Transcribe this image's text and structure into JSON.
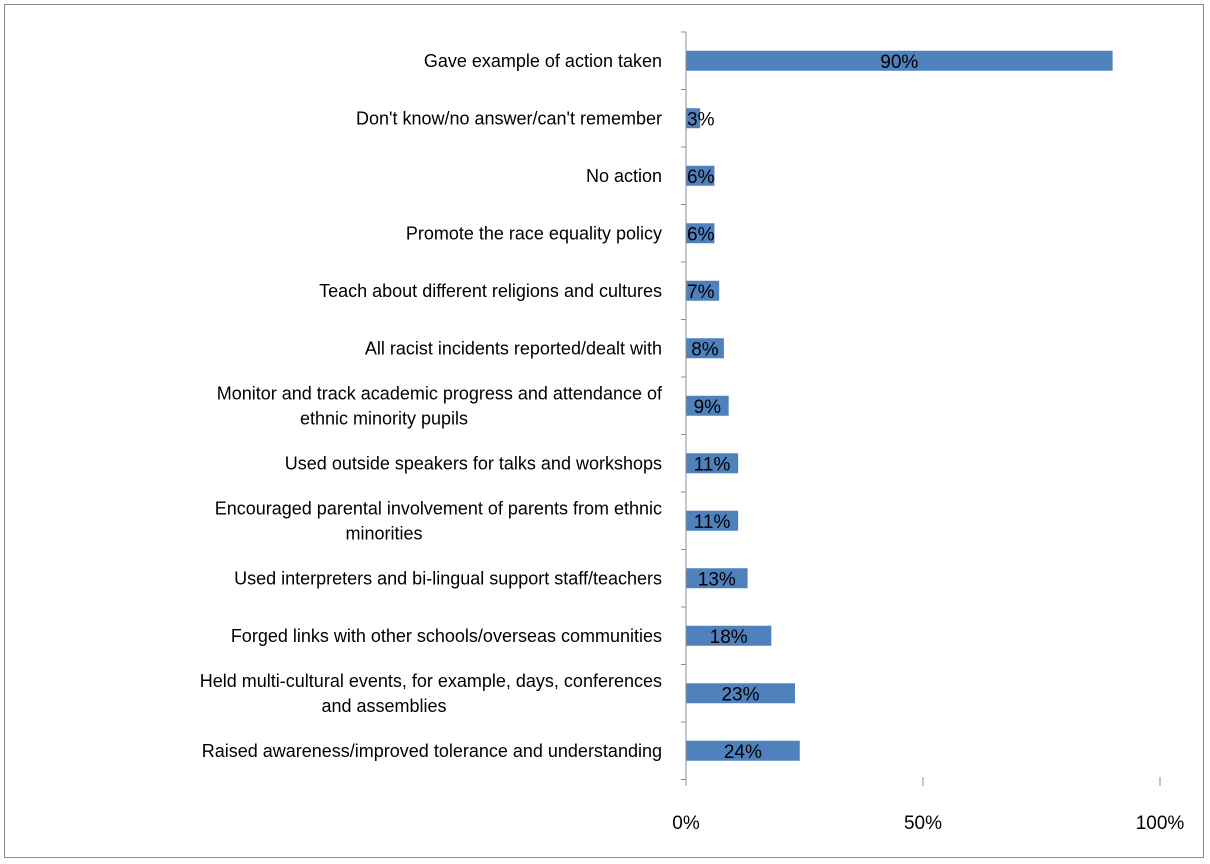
{
  "chart_data": {
    "type": "bar",
    "orientation": "horizontal",
    "categories": [
      [
        "Gave example of action taken"
      ],
      [
        "Don't know/no answer/can't remember"
      ],
      [
        "No action"
      ],
      [
        "Promote the race equality policy"
      ],
      [
        "Teach about different religions and cultures"
      ],
      [
        "All racist incidents reported/dealt with"
      ],
      [
        "Monitor and track academic progress and attendance of",
        "ethnic minority pupils"
      ],
      [
        "Used outside speakers for talks and workshops"
      ],
      [
        "Encouraged parental involvement of parents from ethnic",
        "minorities"
      ],
      [
        "Used interpreters and bi-lingual support staff/teachers"
      ],
      [
        "Forged links with other schools/overseas communities"
      ],
      [
        "Held multi-cultural events, for example, days, conferences",
        "and assemblies"
      ],
      [
        "Raised awareness/improved tolerance and understanding"
      ]
    ],
    "values": [
      90,
      3,
      6,
      6,
      7,
      8,
      9,
      11,
      11,
      13,
      18,
      23,
      24
    ],
    "data_labels": [
      "90%",
      "3%",
      "6%",
      "6%",
      "7%",
      "8%",
      "9%",
      "11%",
      "11%",
      "13%",
      "18%",
      "23%",
      "24%"
    ],
    "xlim": [
      0,
      100
    ],
    "xticks": [
      0,
      50,
      100
    ],
    "xtick_labels": [
      "0%",
      "50%",
      "100%"
    ],
    "title": "",
    "xlabel": "",
    "ylabel": "",
    "grid": false,
    "legend": "none",
    "colors": {
      "bar": "#4f81bd",
      "axis": "#8c8c8c",
      "frame": "#8c8c8c"
    }
  }
}
